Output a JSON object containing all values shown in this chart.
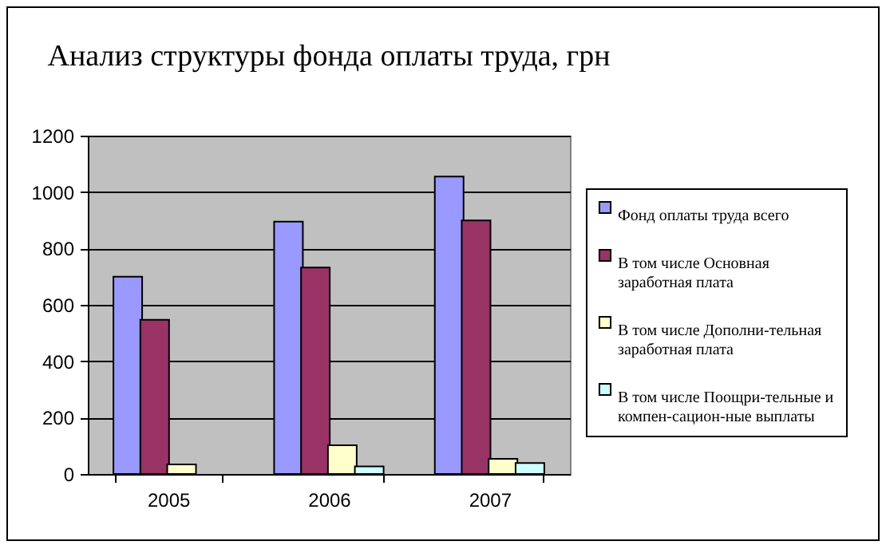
{
  "chart_data": {
    "type": "bar",
    "title": "Анализ структуры фонда оплаты труда, грн",
    "categories": [
      "2005",
      "2006",
      "2007"
    ],
    "series": [
      {
        "name": "Фонд оплаты труда всего",
        "color": "#9999ff",
        "values": [
          700,
          895,
          1055
        ]
      },
      {
        "name": "В том числе Основная заработная плата",
        "color": "#993366",
        "values": [
          547,
          732,
          899
        ]
      },
      {
        "name": "В том числе Дополни-тельная заработная плата",
        "color": "#ffffcc",
        "values": [
          34,
          102,
          54
        ]
      },
      {
        "name": "В том числе Поощри-тельные и компен-сацион-ные выплаты",
        "color": "#ccffff",
        "values": [
          null,
          27,
          39
        ]
      }
    ],
    "ylim": [
      0,
      1200
    ],
    "yticks": [
      0,
      200,
      400,
      600,
      800,
      1000,
      1200
    ],
    "grid": "y",
    "legend": "right"
  }
}
